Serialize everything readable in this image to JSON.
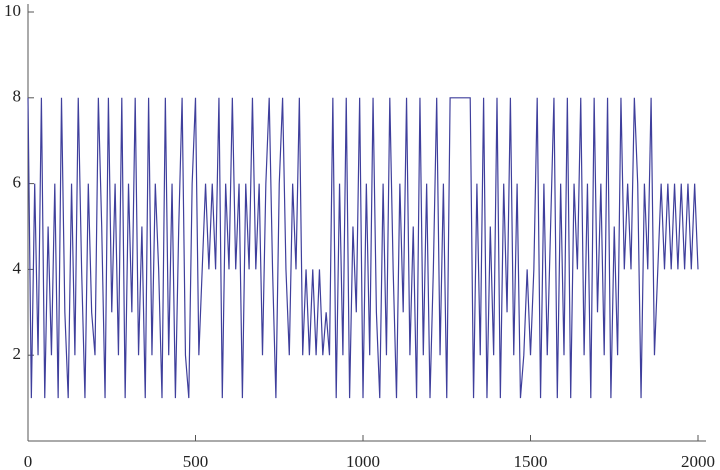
{
  "chart_data": {
    "type": "line",
    "x": [
      0,
      10,
      20,
      30,
      40,
      50,
      60,
      70,
      80,
      90,
      100,
      110,
      120,
      130,
      140,
      150,
      160,
      170,
      180,
      190,
      200,
      210,
      220,
      230,
      240,
      250,
      260,
      270,
      280,
      290,
      300,
      310,
      320,
      330,
      340,
      350,
      360,
      370,
      380,
      390,
      400,
      410,
      420,
      430,
      440,
      450,
      460,
      470,
      480,
      490,
      500,
      510,
      520,
      530,
      540,
      550,
      560,
      570,
      580,
      590,
      600,
      610,
      620,
      630,
      640,
      650,
      660,
      670,
      680,
      690,
      700,
      710,
      720,
      730,
      740,
      750,
      760,
      770,
      780,
      790,
      800,
      810,
      820,
      830,
      840,
      850,
      860,
      870,
      880,
      890,
      900,
      910,
      920,
      930,
      940,
      950,
      960,
      970,
      980,
      990,
      1000,
      1010,
      1020,
      1030,
      1040,
      1050,
      1060,
      1070,
      1080,
      1090,
      1100,
      1110,
      1120,
      1130,
      1140,
      1150,
      1160,
      1170,
      1180,
      1190,
      1200,
      1210,
      1220,
      1230,
      1240,
      1250,
      1260,
      1270,
      1280,
      1290,
      1300,
      1310,
      1320,
      1330,
      1340,
      1350,
      1360,
      1370,
      1380,
      1390,
      1400,
      1410,
      1420,
      1430,
      1440,
      1450,
      1460,
      1470,
      1480,
      1490,
      1500,
      1510,
      1520,
      1530,
      1540,
      1550,
      1560,
      1570,
      1580,
      1590,
      1600,
      1610,
      1620,
      1630,
      1640,
      1650,
      1660,
      1670,
      1680,
      1690,
      1700,
      1710,
      1720,
      1730,
      1740,
      1750,
      1760,
      1770,
      1780,
      1790,
      1800,
      1810,
      1820,
      1830,
      1840,
      1850,
      1860,
      1870,
      1880,
      1890,
      1900,
      1910,
      1920,
      1930,
      1940,
      1950,
      1960,
      1970,
      1980,
      1990,
      2000
    ],
    "series": [
      {
        "color": "#3f3f9c",
        "values": [
          8,
          1,
          6,
          2,
          8,
          1,
          5,
          2,
          6,
          1,
          8,
          3,
          1,
          6,
          2,
          8,
          4,
          1,
          6,
          3,
          2,
          8,
          5,
          1,
          8,
          3,
          6,
          2,
          8,
          1,
          6,
          3,
          8,
          2,
          5,
          1,
          8,
          2,
          6,
          4,
          1,
          8,
          2,
          6,
          1,
          5,
          8,
          2,
          1,
          6,
          8,
          2,
          4,
          6,
          4,
          6,
          4,
          8,
          1,
          6,
          4,
          8,
          4,
          6,
          1,
          6,
          4,
          8,
          4,
          6,
          2,
          6,
          8,
          4,
          1,
          6,
          8,
          4,
          2,
          6,
          4,
          8,
          2,
          4,
          2,
          4,
          2,
          4,
          2,
          3,
          2,
          8,
          1,
          6,
          2,
          8,
          1,
          5,
          3,
          8,
          1,
          6,
          2,
          8,
          3,
          1,
          6,
          2,
          8,
          4,
          1,
          6,
          3,
          8,
          2,
          5,
          1,
          8,
          2,
          6,
          1,
          4,
          8,
          2,
          6,
          1,
          8,
          8,
          8,
          8,
          8,
          8,
          8,
          1,
          6,
          2,
          8,
          1,
          5,
          2,
          8,
          1,
          6,
          3,
          8,
          2,
          6,
          1,
          2,
          4,
          2,
          4,
          8,
          1,
          6,
          2,
          5,
          8,
          1,
          6,
          2,
          8,
          1,
          6,
          4,
          8,
          2,
          6,
          1,
          8,
          3,
          6,
          2,
          8,
          1,
          5,
          2,
          8,
          4,
          6,
          4,
          8,
          6,
          1,
          6,
          4,
          8,
          2,
          4,
          6,
          4,
          6,
          4,
          6,
          4,
          6,
          4,
          6,
          4,
          6,
          4
        ]
      }
    ],
    "xlim": [
      0,
      2000
    ],
    "ylim": [
      0,
      10
    ],
    "xticks": [
      0,
      500,
      1000,
      1500,
      2000
    ],
    "yticks": [
      2,
      4,
      6,
      8,
      10
    ]
  }
}
